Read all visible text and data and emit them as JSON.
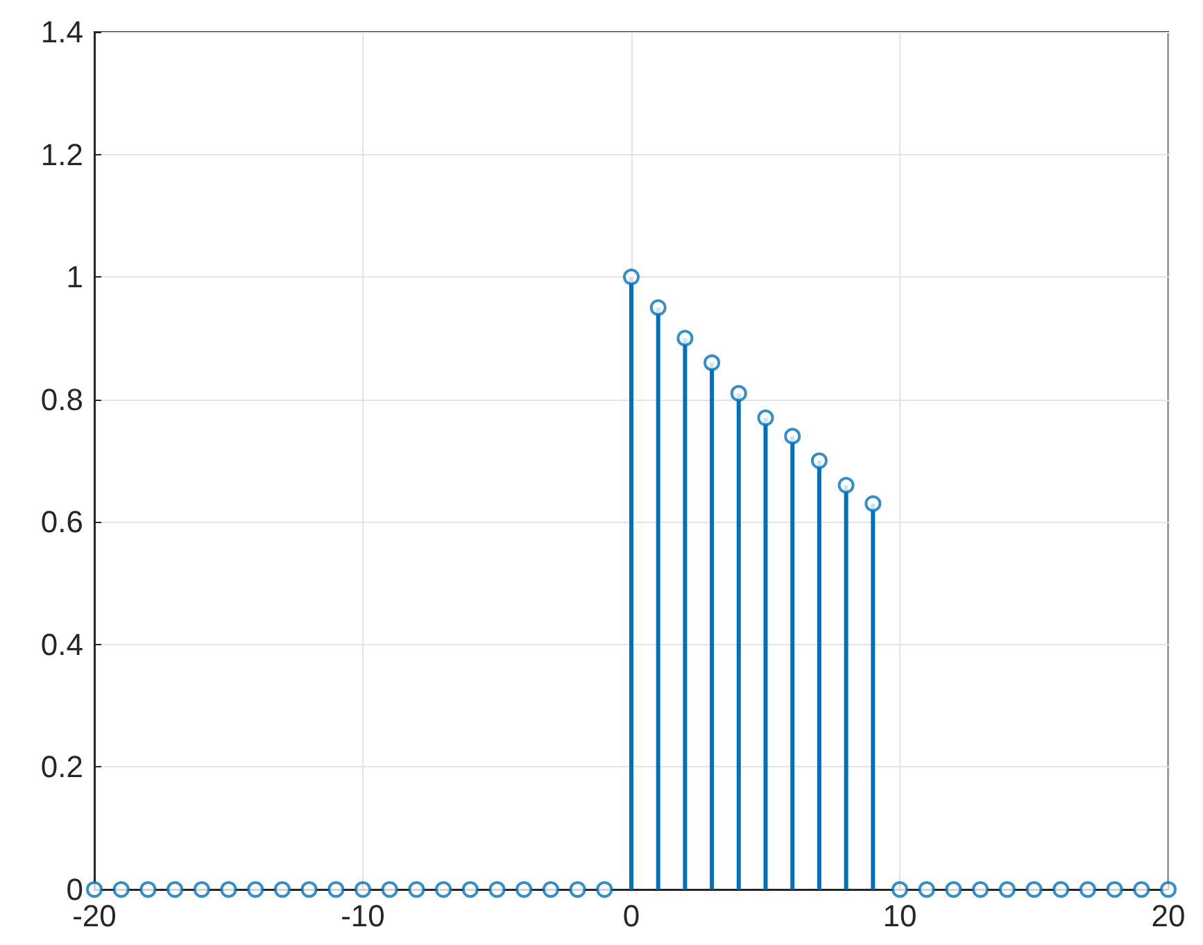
{
  "chart_data": {
    "type": "lollipop",
    "x": [
      -20,
      -19,
      -18,
      -17,
      -16,
      -15,
      -14,
      -13,
      -12,
      -11,
      -10,
      -9,
      -8,
      -7,
      -6,
      -5,
      -4,
      -3,
      -2,
      -1,
      0,
      1,
      2,
      3,
      4,
      5,
      6,
      7,
      8,
      9,
      10,
      11,
      12,
      13,
      14,
      15,
      16,
      17,
      18,
      19,
      20
    ],
    "values": [
      0,
      0,
      0,
      0,
      0,
      0,
      0,
      0,
      0,
      0,
      0,
      0,
      0,
      0,
      0,
      0,
      0,
      0,
      0,
      0,
      1,
      0.95,
      0.9,
      0.86,
      0.81,
      0.77,
      0.74,
      0.7,
      0.66,
      0.63,
      0,
      0,
      0,
      0,
      0,
      0,
      0,
      0,
      0,
      0,
      0
    ],
    "color": "#0072bd",
    "xlim": [
      -20,
      20
    ],
    "xticks": [
      -20,
      -10,
      0,
      10,
      20
    ],
    "ylim": [
      0,
      1.4
    ],
    "yticks": [
      0,
      0.2,
      0.4,
      0.6,
      0.8,
      1,
      1.2,
      1.4
    ],
    "grid": true,
    "marker": "circle"
  }
}
